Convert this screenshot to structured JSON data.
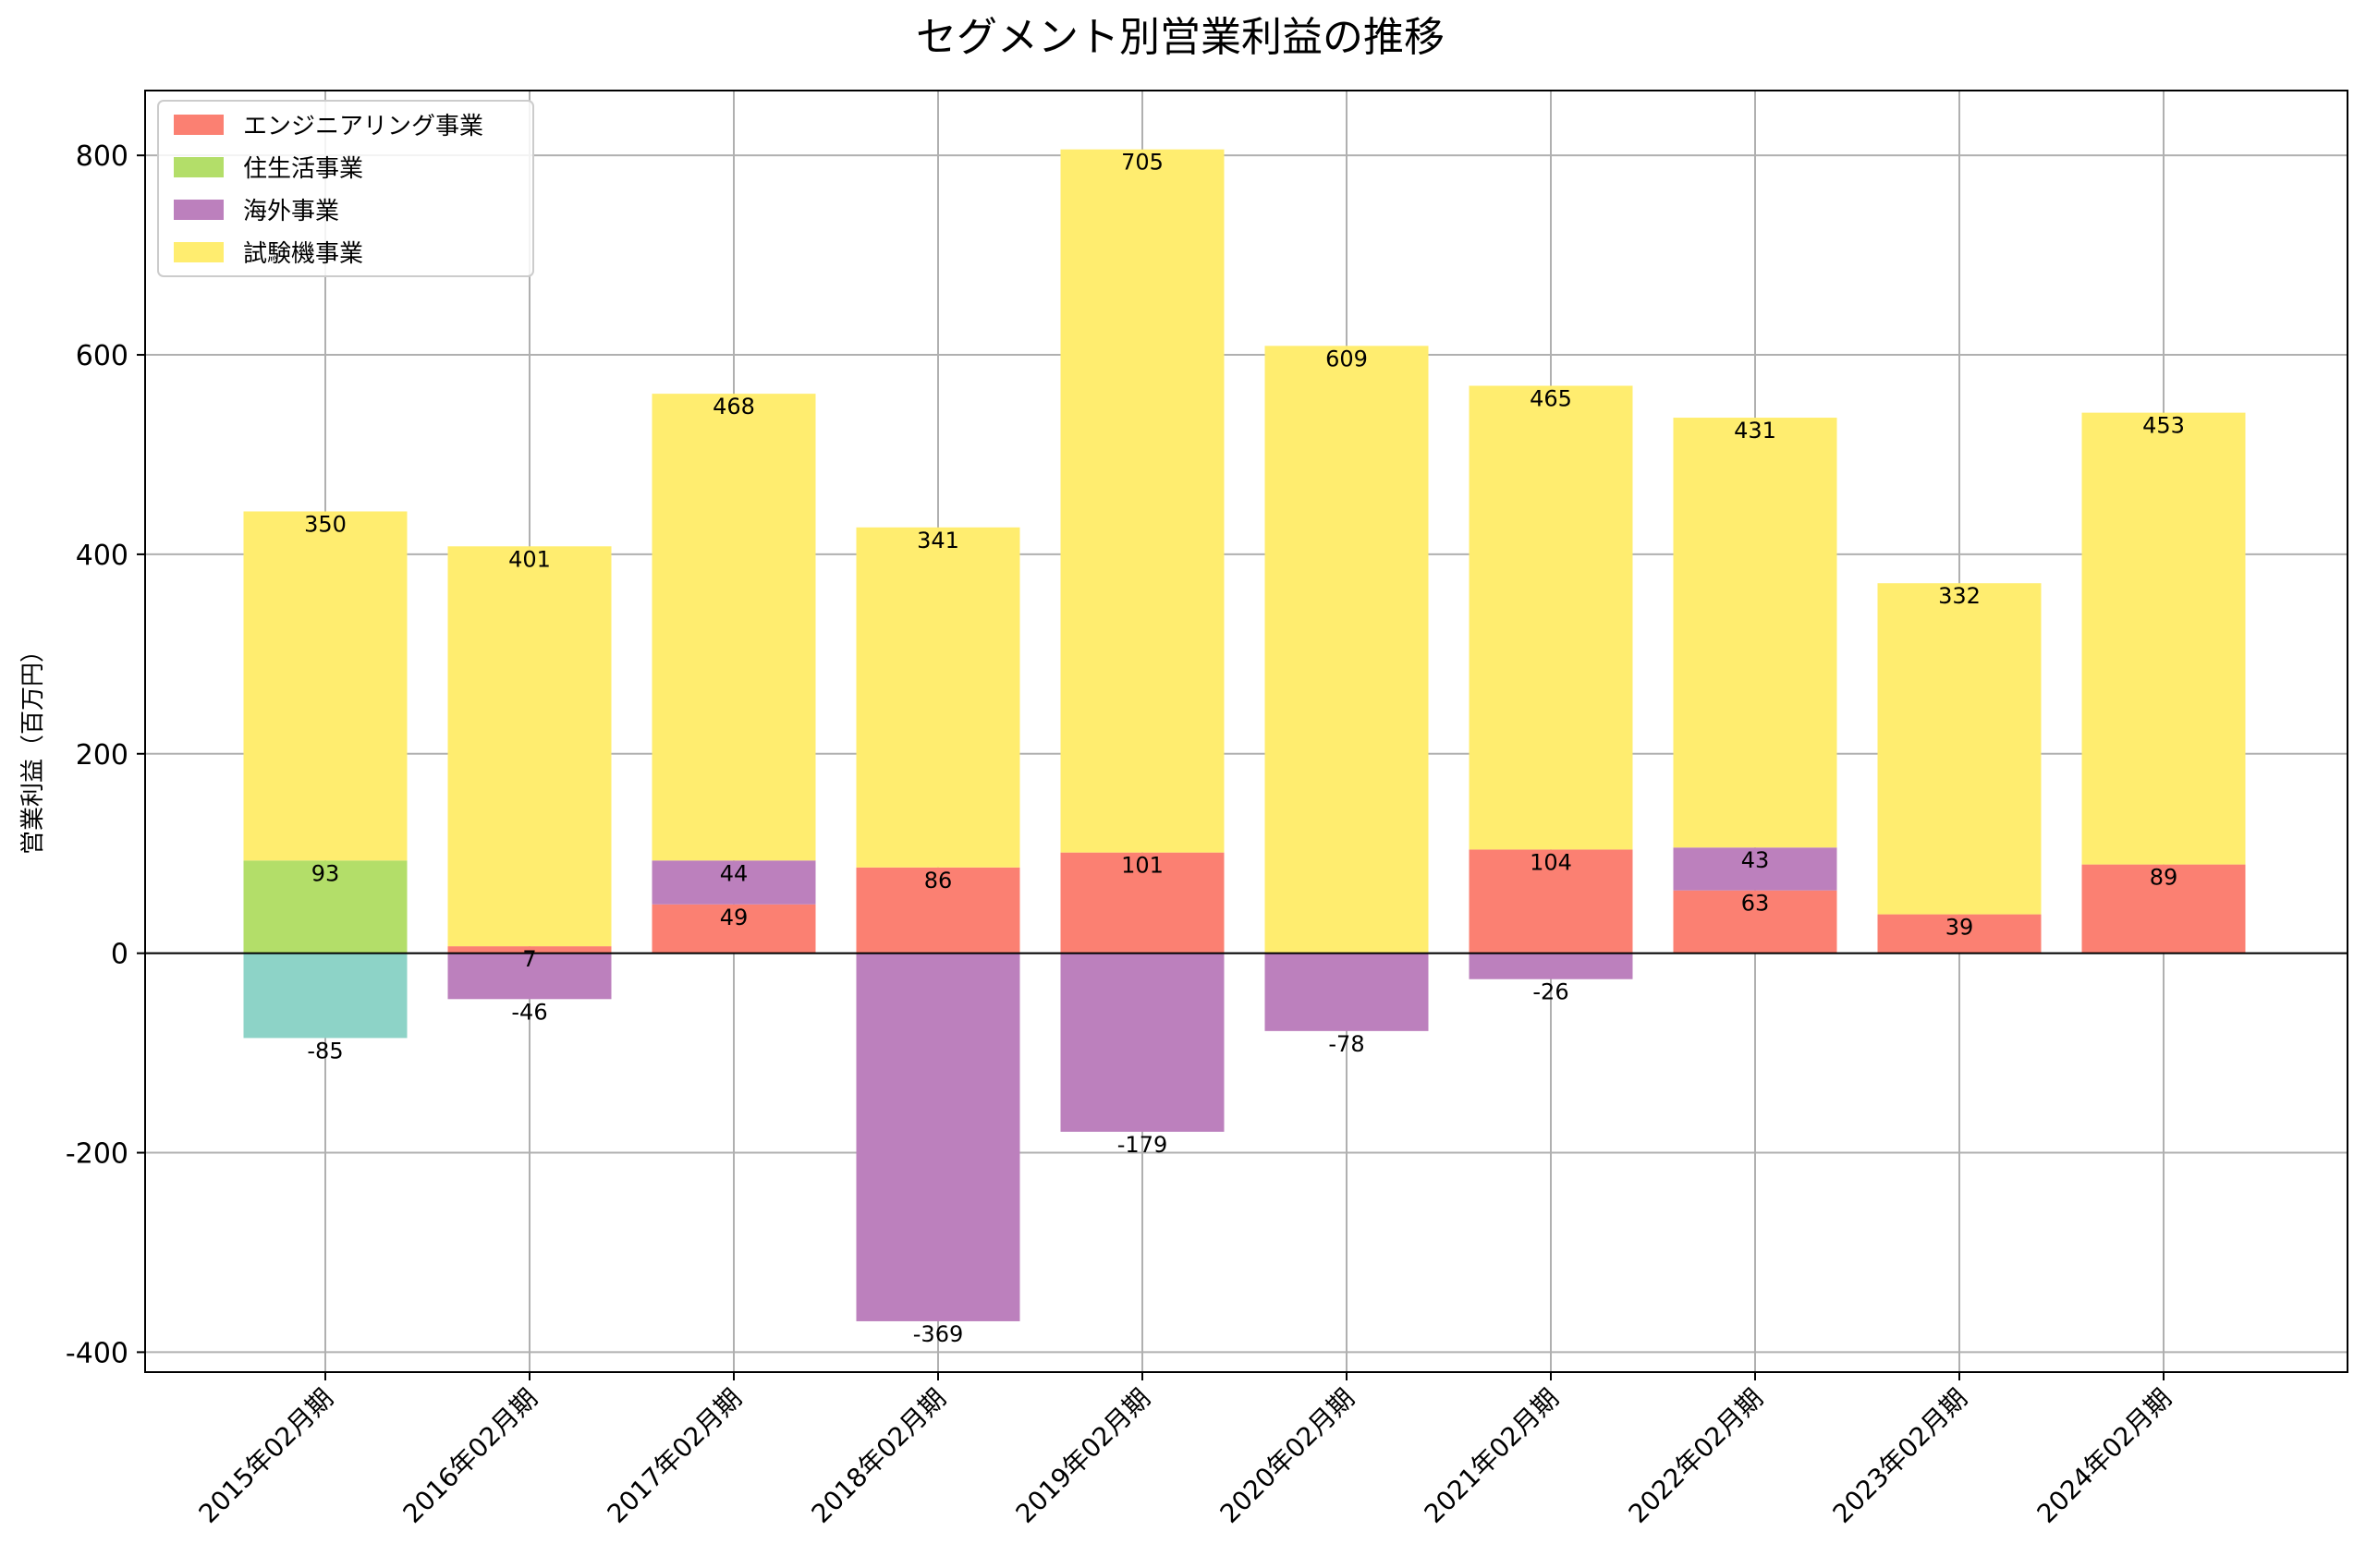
{
  "chart_data": {
    "type": "bar",
    "stacked": true,
    "title": "セグメント別営業利益の推移",
    "xlabel": "",
    "ylabel": "営業利益（百万円）",
    "ylim": [
      -420,
      865
    ],
    "yticks": [
      -400,
      -200,
      0,
      200,
      400,
      600,
      800
    ],
    "grid": true,
    "legend_position": "top-left",
    "categories": [
      "2015年02月期",
      "2016年02月期",
      "2017年02月期",
      "2018年02月期",
      "2019年02月期",
      "2020年02月期",
      "2021年02月期",
      "2022年02月期",
      "2023年02月期",
      "2024年02月期"
    ],
    "series": [
      {
        "name": "エンジニアリング事業",
        "color": "#fb8072",
        "values": [
          null,
          7,
          49,
          86,
          101,
          null,
          104,
          63,
          39,
          89
        ]
      },
      {
        "name": "住生活事業",
        "color": "#b3de69",
        "values": [
          93,
          null,
          null,
          null,
          null,
          null,
          null,
          null,
          null,
          null
        ]
      },
      {
        "name": "海外事業",
        "color": "#bc80bd",
        "values": [
          null,
          -46,
          44,
          -369,
          -179,
          -78,
          -26,
          43,
          null,
          null
        ]
      },
      {
        "name": "試験機事業",
        "color": "#ffed6f",
        "values": [
          350,
          401,
          468,
          341,
          705,
          609,
          465,
          431,
          332,
          453
        ]
      },
      {
        "name": "",
        "color": "#8dd3c7",
        "values": [
          -85,
          null,
          null,
          null,
          null,
          null,
          null,
          null,
          null,
          null
        ]
      }
    ]
  }
}
